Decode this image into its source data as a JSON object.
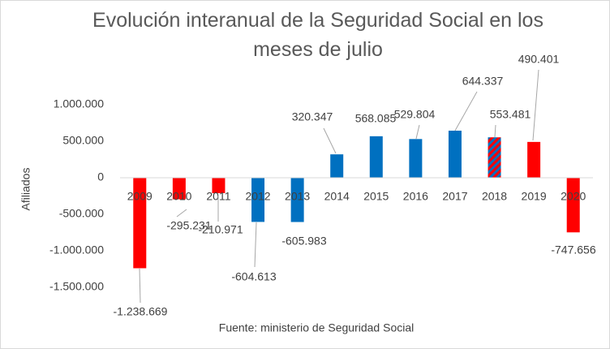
{
  "chart_data": {
    "type": "bar",
    "title": "Evolución interanual de la Seguridad Social en los meses de julio",
    "y_label": "Afiliados",
    "source": "Fuente: ministerio de Seguridad Social",
    "categories": [
      "2009",
      "2010",
      "2011",
      "2012",
      "2013",
      "2014",
      "2015",
      "2016",
      "2017",
      "2018",
      "2019",
      "2020"
    ],
    "values": [
      -1238669,
      -295231,
      -210971,
      -604613,
      -605983,
      320347,
      568085,
      529804,
      644337,
      553481,
      490401,
      -747656
    ],
    "value_labels": [
      "-1.238.669",
      "-295.231",
      "-210.971",
      "-604.613",
      "-605.983",
      "320.347",
      "568.085",
      "529.804",
      "644.337",
      "553.481",
      "490.401",
      "-747.656"
    ],
    "colors": [
      "#ff0000",
      "#ff0000",
      "#ff0000",
      "#0070c0",
      "#0070c0",
      "#0070c0",
      "#0070c0",
      "#0070c0",
      "#0070c0",
      "#0070c0",
      "#ff0000",
      "#ff0000"
    ],
    "patterns": [
      null,
      null,
      null,
      null,
      null,
      null,
      null,
      null,
      null,
      "stripes",
      null,
      null
    ],
    "ylim": [
      -1500000,
      1000000
    ],
    "yticks": [
      {
        "value": -1500000,
        "label": "-1.500.000"
      },
      {
        "value": -1000000,
        "label": "-1.000.000"
      },
      {
        "value": -500000,
        "label": "-500.000"
      },
      0,
      {
        "value": 500000,
        "label": "500.000"
      },
      {
        "value": 1000000,
        "label": "1.000.000"
      }
    ],
    "grid": false
  }
}
